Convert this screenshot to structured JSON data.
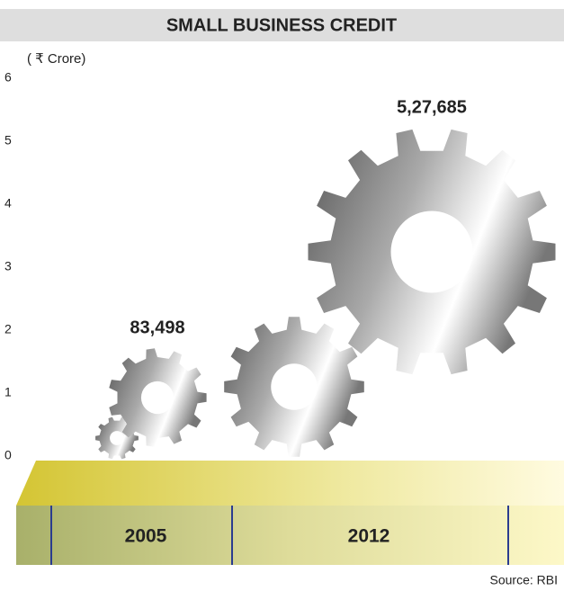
{
  "chart_data": {
    "type": "gear",
    "title": "SMALL BUSINESS CREDIT",
    "y_label": "( ₹ Crore)",
    "categories": [
      "2005",
      "2012"
    ],
    "values": [
      0.83498,
      5.27685
    ],
    "value_labels": [
      "83,498",
      "5,27,685"
    ],
    "ylim": [
      0,
      6
    ],
    "yticks": [
      0,
      1,
      2,
      3,
      4,
      5,
      6
    ],
    "source": "Source: RBI"
  }
}
